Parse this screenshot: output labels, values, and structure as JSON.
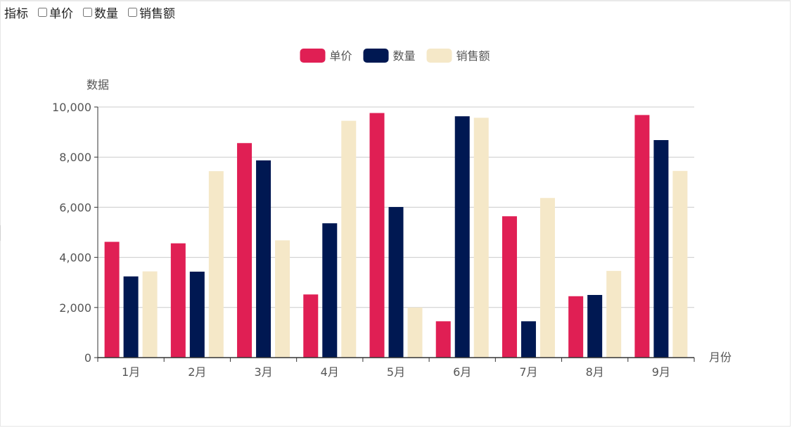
{
  "filter": {
    "label": "指标",
    "options": [
      {
        "label": "单价",
        "checked": false
      },
      {
        "label": "数量",
        "checked": false
      },
      {
        "label": "销售额",
        "checked": false
      }
    ]
  },
  "colors": {
    "series": [
      "#e01f54",
      "#001852",
      "#f5e8c8"
    ],
    "axis": "#333333",
    "grid": "#cccccc",
    "text": "#555555"
  },
  "chart_data": {
    "type": "bar",
    "title": "",
    "xlabel": "月份",
    "ylabel": "数据",
    "categories": [
      "1月",
      "2月",
      "3月",
      "4月",
      "5月",
      "6月",
      "7月",
      "8月",
      "9月"
    ],
    "series": [
      {
        "name": "单价",
        "values": [
          4620,
          4560,
          8560,
          2520,
          9760,
          1450,
          5640,
          2450,
          9680
        ]
      },
      {
        "name": "数量",
        "values": [
          3240,
          3430,
          7870,
          5360,
          6010,
          9630,
          1450,
          2500,
          8680
        ]
      },
      {
        "name": "销售额",
        "values": [
          3440,
          7440,
          4680,
          9450,
          2000,
          9570,
          6370,
          3460,
          7450
        ]
      }
    ],
    "ylim": [
      0,
      10000
    ],
    "yticks": [
      "0",
      "2,000",
      "4,000",
      "6,000",
      "8,000",
      "10,000"
    ],
    "grid": true,
    "legend": "top-center"
  }
}
